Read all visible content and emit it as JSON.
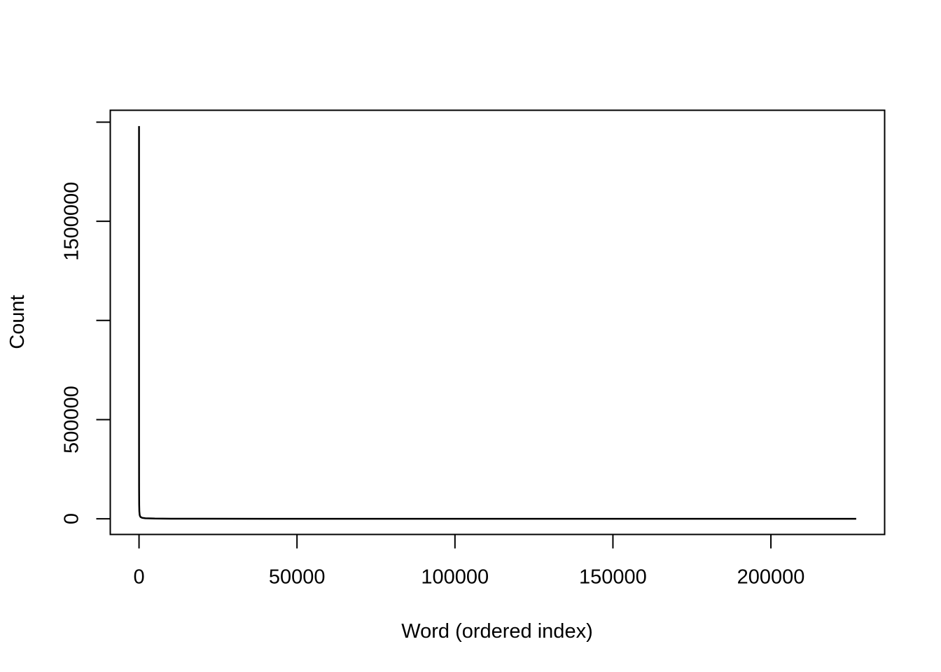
{
  "chart_data": {
    "type": "line",
    "title": "",
    "xlabel": "Word (ordered index)",
    "ylabel": "Count",
    "xlim": [
      -9100,
      236000
    ],
    "ylim": [
      -79000,
      2060000
    ],
    "x_ticks": [
      0,
      50000,
      100000,
      150000,
      200000
    ],
    "x_tick_labels": [
      "0",
      "50000",
      "100000",
      "150000",
      "200000"
    ],
    "y_ticks": [
      0,
      500000,
      1000000,
      1500000,
      2000000
    ],
    "y_tick_labels": [
      "0",
      "500000",
      "",
      "1500000",
      ""
    ],
    "grid": false,
    "legend": "none",
    "line_color": "#000000",
    "series": [
      {
        "x": [
          1,
          2,
          3,
          5,
          10,
          20,
          50,
          100,
          200,
          300,
          500,
          1000,
          2000,
          5000,
          10000,
          20000,
          50000,
          100000,
          150000,
          200000,
          227000
        ],
        "values": [
          1980000,
          1100000,
          800000,
          520000,
          300000,
          160000,
          70000,
          38000,
          20000,
          14000,
          9000,
          5000,
          2800,
          1200,
          600,
          300,
          120,
          50,
          25,
          10,
          1
        ]
      }
    ]
  }
}
